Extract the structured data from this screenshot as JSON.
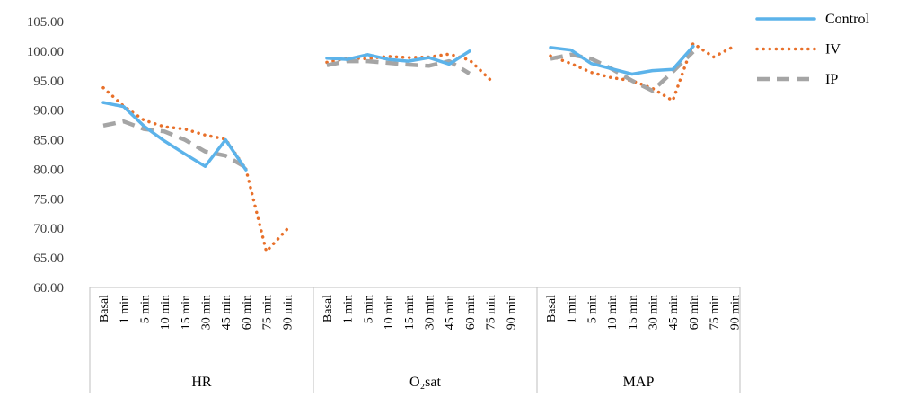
{
  "chart_data": {
    "type": "line",
    "title": "",
    "xlabel": "",
    "ylabel": "",
    "ylim": [
      60,
      105
    ],
    "yticks": [
      "60.00",
      "65.00",
      "70.00",
      "75.00",
      "80.00",
      "85.00",
      "90.00",
      "95.00",
      "100.00",
      "105.00"
    ],
    "grid": "none",
    "legend_position": "top-right",
    "groups": [
      {
        "name": "HR",
        "categories": [
          "Basal",
          "1 min",
          "5 min",
          "10 min",
          "15 min",
          "30 min",
          "45 min",
          "60 min",
          "75 min",
          "90 min"
        ],
        "series": [
          {
            "name": "Control",
            "values": [
              91.3,
              90.6,
              87.3,
              84.8,
              82.6,
              80.5,
              85.0,
              79.9,
              null,
              null
            ]
          },
          {
            "name": "IV",
            "values": [
              93.8,
              90.7,
              88.3,
              87.2,
              86.8,
              85.8,
              85.1,
              80.0,
              66.1,
              69.8
            ]
          },
          {
            "name": "IP",
            "values": [
              87.4,
              88.1,
              86.8,
              86.4,
              85.0,
              83.0,
              82.3,
              80.3,
              null,
              null
            ]
          }
        ]
      },
      {
        "name": "O₂sat",
        "categories": [
          "Basal",
          "1 min",
          "5 min",
          "10 min",
          "15 min",
          "30 min",
          "45 min",
          "60 min",
          "75 min",
          "90 min"
        ],
        "series": [
          {
            "name": "Control",
            "values": [
              98.8,
              98.6,
              99.4,
              98.6,
              98.3,
              98.9,
              97.8,
              100.0,
              null,
              null
            ]
          },
          {
            "name": "IV",
            "values": [
              98.1,
              98.8,
              98.7,
              99.1,
              98.9,
              99.0,
              99.5,
              98.5,
              95.2,
              null
            ]
          },
          {
            "name": "IP",
            "values": [
              97.6,
              98.3,
              98.3,
              98.0,
              97.7,
              97.5,
              98.3,
              96.2,
              null,
              null
            ]
          }
        ]
      },
      {
        "name": "MAP",
        "categories": [
          "Basal",
          "1 min",
          "5 min",
          "10 min",
          "15 min",
          "30 min",
          "45 min",
          "60 min",
          "75 min",
          "90 min"
        ],
        "series": [
          {
            "name": "Control",
            "values": [
              100.6,
              100.2,
              97.9,
              97.0,
              96.1,
              96.7,
              96.9,
              100.8,
              null,
              null
            ]
          },
          {
            "name": "IV",
            "values": [
              99.2,
              97.9,
              96.4,
              95.5,
              95.0,
              93.7,
              91.6,
              101.3,
              99.0,
              100.8
            ]
          },
          {
            "name": "IP",
            "values": [
              98.7,
              99.4,
              98.7,
              97.0,
              95.0,
              93.3,
              96.5,
              99.9,
              null,
              null
            ]
          }
        ]
      }
    ],
    "legend": [
      {
        "name": "Control",
        "color": "#5cb3ea",
        "style": "solid"
      },
      {
        "name": "IV",
        "color": "#e8702a",
        "style": "dotted"
      },
      {
        "name": "IP",
        "color": "#a5a5a5",
        "style": "dashed"
      }
    ]
  }
}
